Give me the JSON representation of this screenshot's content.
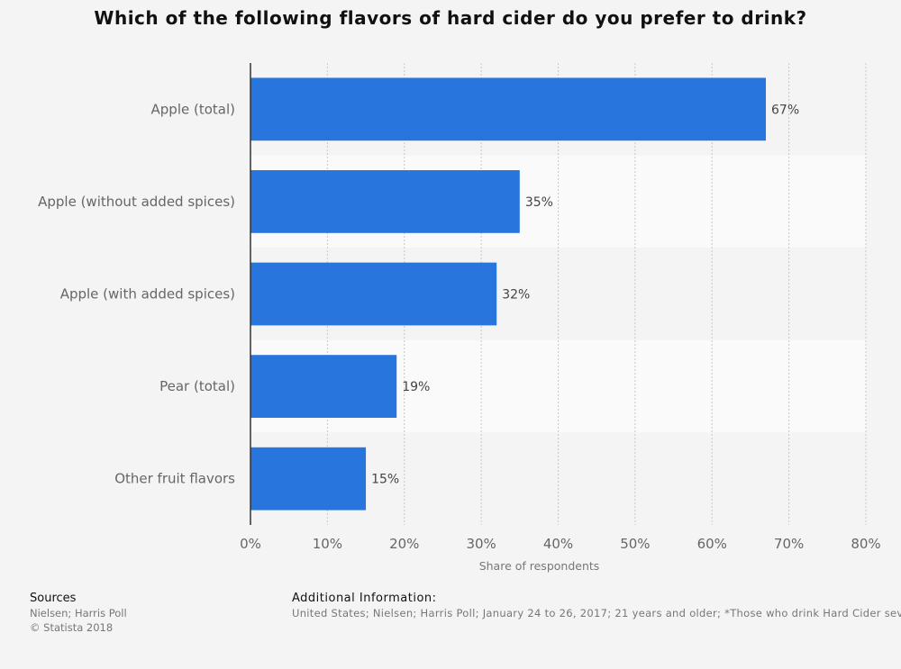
{
  "chart_data": {
    "type": "bar",
    "orientation": "horizontal",
    "title": "Which of the following flavors of hard cider do you prefer to drink?",
    "categories": [
      "Apple (total)",
      "Apple (without added spices)",
      "Apple (with added spices)",
      "Pear (total)",
      "Other fruit flavors"
    ],
    "values": [
      67,
      35,
      32,
      19,
      15
    ],
    "value_labels": [
      "67%",
      "35%",
      "32%",
      "19%",
      "15%"
    ],
    "xlabel": "Share of respondents",
    "ylabel": "",
    "xlim": [
      0,
      80
    ],
    "x_ticks": [
      "0%",
      "10%",
      "20%",
      "30%",
      "40%",
      "50%",
      "60%",
      "70%",
      "80%"
    ],
    "grid": true,
    "legend": "none",
    "bar_color": "#2876dd"
  },
  "footer": {
    "sources_heading": "Sources",
    "sources_line1": "Nielsen; Harris Poll",
    "sources_line2": "© Statista 2018",
    "info_heading": "Additional Information:",
    "info_text": "United States; Nielsen; Harris Poll; January 24 to 26, 2017; 21 years and older; *Those who drink Hard Cider several times a month or more"
  }
}
